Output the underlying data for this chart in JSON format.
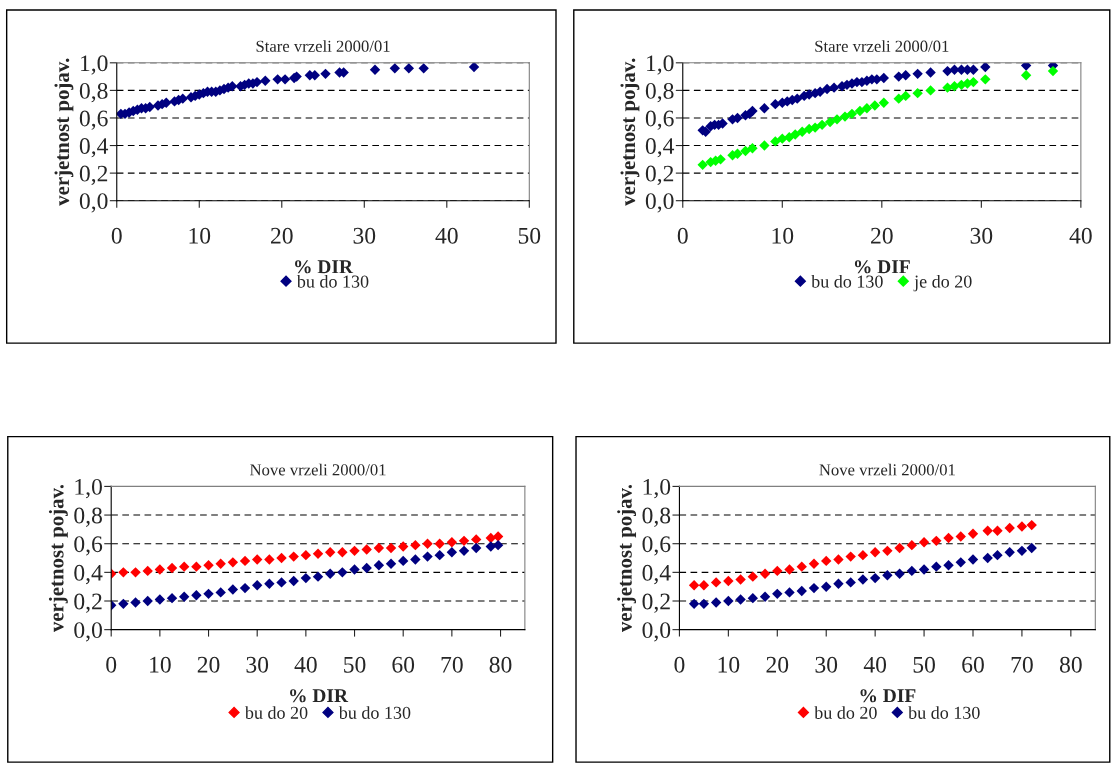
{
  "chart_data": [
    {
      "type": "scatter",
      "title": "Stare vrzeli 2000/01",
      "xlabel": "% DIR",
      "ylabel": "verjetnost pojav.",
      "xlim": [
        0,
        50
      ],
      "xticks": [
        0,
        10,
        20,
        30,
        40,
        50
      ],
      "ylim": [
        0,
        1
      ],
      "yticks": [
        {
          "value": 0,
          "label": "0,0"
        },
        {
          "value": 0.2,
          "label": "0,2"
        },
        {
          "value": 0.4,
          "label": "0,4"
        },
        {
          "value": 0.6,
          "label": "0,6"
        },
        {
          "value": 0.8,
          "label": "0,8"
        },
        {
          "value": 1,
          "label": "1,0"
        }
      ],
      "grid": "y",
      "legend": "bottom",
      "marker": "diamond",
      "series": [
        {
          "name": "bu do 130",
          "color": "#000080",
          "x": [
            0.5,
            1,
            1.5,
            2,
            2.5,
            3,
            3.5,
            4,
            5,
            5.5,
            6,
            7,
            7.5,
            8,
            9,
            9.5,
            10,
            10.5,
            11,
            11.5,
            12,
            12.5,
            13,
            13.5,
            14,
            15,
            15.5,
            16,
            16.5,
            17,
            18,
            19.5,
            20.4,
            21.5,
            21.8,
            23.4,
            24,
            25.3,
            27,
            27.5,
            31.3,
            33.7,
            35.4,
            37.2,
            43.3
          ],
          "values": [
            0.63,
            0.63,
            0.64,
            0.65,
            0.66,
            0.67,
            0.67,
            0.68,
            0.69,
            0.7,
            0.71,
            0.72,
            0.73,
            0.74,
            0.75,
            0.76,
            0.77,
            0.78,
            0.79,
            0.79,
            0.79,
            0.8,
            0.81,
            0.82,
            0.83,
            0.83,
            0.84,
            0.85,
            0.85,
            0.86,
            0.87,
            0.88,
            0.88,
            0.89,
            0.9,
            0.91,
            0.91,
            0.92,
            0.93,
            0.93,
            0.95,
            0.96,
            0.96,
            0.96,
            0.97
          ]
        }
      ]
    },
    {
      "type": "scatter",
      "title": "Stare vrzeli 2000/01",
      "xlabel": "% DIF",
      "ylabel": "verjetnost pojav.",
      "xlim": [
        0,
        40
      ],
      "xticks": [
        0,
        10,
        20,
        30,
        40
      ],
      "ylim": [
        0,
        1
      ],
      "yticks": [
        {
          "value": 0,
          "label": "0,0"
        },
        {
          "value": 0.2,
          "label": "0,2"
        },
        {
          "value": 0.4,
          "label": "0,4"
        },
        {
          "value": 0.6,
          "label": "0,6"
        },
        {
          "value": 0.8,
          "label": "0,8"
        },
        {
          "value": 1,
          "label": "1,0"
        }
      ],
      "grid": "y",
      "legend": "bottom",
      "marker": "diamond",
      "series": [
        {
          "name": "bu do 130",
          "color": "#000080",
          "x": [
            2,
            2.3,
            2.8,
            3.2,
            3.6,
            4,
            5,
            5.5,
            6.3,
            6.7,
            7,
            8.2,
            9.3,
            10,
            10.5,
            11,
            11.5,
            12.2,
            12.7,
            13.3,
            13.8,
            14.5,
            15.2,
            16,
            16.5,
            17,
            17.5,
            18,
            18.5,
            19,
            19.5,
            20.2,
            21.7,
            22.4,
            23.6,
            24.9,
            26.6,
            27.3,
            28,
            28.6,
            29.2,
            30.4,
            34.5,
            37.2
          ],
          "values": [
            0.51,
            0.5,
            0.54,
            0.55,
            0.55,
            0.56,
            0.59,
            0.6,
            0.62,
            0.63,
            0.65,
            0.67,
            0.7,
            0.71,
            0.72,
            0.73,
            0.74,
            0.76,
            0.77,
            0.78,
            0.79,
            0.81,
            0.82,
            0.83,
            0.84,
            0.85,
            0.86,
            0.86,
            0.87,
            0.88,
            0.88,
            0.89,
            0.9,
            0.91,
            0.92,
            0.93,
            0.94,
            0.95,
            0.95,
            0.95,
            0.95,
            0.97,
            0.98,
            0.98
          ]
        },
        {
          "name": "je do 20",
          "color": "#00ff00",
          "x": [
            2,
            2.8,
            3.3,
            3.8,
            5,
            5.5,
            6.3,
            7,
            8.2,
            9.3,
            10,
            10.7,
            11.3,
            12,
            12.7,
            13.3,
            14,
            14.8,
            15.5,
            16.3,
            17,
            17.8,
            18.5,
            19.3,
            20.2,
            21.7,
            22.4,
            23.6,
            24.9,
            26.6,
            27.3,
            28,
            28.6,
            29.2,
            30.4,
            34.5,
            37.2
          ],
          "values": [
            0.26,
            0.28,
            0.29,
            0.3,
            0.33,
            0.34,
            0.36,
            0.38,
            0.4,
            0.43,
            0.45,
            0.46,
            0.48,
            0.5,
            0.52,
            0.53,
            0.55,
            0.57,
            0.59,
            0.61,
            0.63,
            0.65,
            0.67,
            0.69,
            0.71,
            0.74,
            0.76,
            0.78,
            0.8,
            0.82,
            0.83,
            0.84,
            0.85,
            0.86,
            0.88,
            0.91,
            0.94
          ]
        }
      ]
    },
    {
      "type": "scatter",
      "title": "Nove vrzeli 2000/01",
      "xlabel": "% DIR",
      "ylabel": "verjetnost pojav.",
      "xlim": [
        0,
        85
      ],
      "xticks": [
        0,
        10,
        20,
        30,
        40,
        50,
        60,
        70,
        80
      ],
      "ylim": [
        0,
        1
      ],
      "yticks": [
        {
          "value": 0,
          "label": "0,0"
        },
        {
          "value": 0.2,
          "label": "0,2"
        },
        {
          "value": 0.4,
          "label": "0,4"
        },
        {
          "value": 0.6,
          "label": "0,6"
        },
        {
          "value": 0.8,
          "label": "0,8"
        },
        {
          "value": 1,
          "label": "1,0"
        }
      ],
      "grid": "y",
      "legend": "bottom",
      "marker": "diamond",
      "series": [
        {
          "name": "bu do 20",
          "color": "#ff0000",
          "x": [
            0,
            2.5,
            5,
            7.5,
            10,
            12.5,
            15,
            17.5,
            20,
            22.5,
            25,
            27.5,
            30,
            32.5,
            35,
            37.5,
            40,
            42.5,
            45,
            47.5,
            50,
            52.5,
            55,
            57.5,
            60,
            62.5,
            65,
            67.5,
            70,
            72.5,
            75,
            78,
            79.5
          ],
          "values": [
            0.39,
            0.4,
            0.4,
            0.41,
            0.42,
            0.43,
            0.44,
            0.44,
            0.45,
            0.46,
            0.47,
            0.48,
            0.49,
            0.49,
            0.5,
            0.51,
            0.52,
            0.53,
            0.54,
            0.54,
            0.55,
            0.56,
            0.57,
            0.57,
            0.58,
            0.59,
            0.6,
            0.6,
            0.61,
            0.62,
            0.63,
            0.64,
            0.65
          ]
        },
        {
          "name": "bu do 130",
          "color": "#000080",
          "x": [
            0,
            2.5,
            5,
            7.5,
            10,
            12.5,
            15,
            17.5,
            20,
            22.5,
            25,
            27.5,
            30,
            32.5,
            35,
            37.5,
            40,
            42.5,
            45,
            47.5,
            50,
            52.5,
            55,
            57.5,
            60,
            62.5,
            65,
            67.5,
            70,
            72.5,
            75,
            78,
            79.5
          ],
          "values": [
            0.17,
            0.18,
            0.19,
            0.2,
            0.21,
            0.22,
            0.23,
            0.24,
            0.25,
            0.26,
            0.28,
            0.29,
            0.31,
            0.32,
            0.33,
            0.34,
            0.36,
            0.37,
            0.39,
            0.4,
            0.42,
            0.43,
            0.45,
            0.46,
            0.48,
            0.49,
            0.51,
            0.52,
            0.54,
            0.55,
            0.57,
            0.58,
            0.59
          ]
        }
      ]
    },
    {
      "type": "scatter",
      "title": "Nove vrzeli 2000/01",
      "xlabel": "% DIF",
      "ylabel": "verjetnost pojav.",
      "xlim": [
        0,
        85
      ],
      "xticks": [
        0,
        10,
        20,
        30,
        40,
        50,
        60,
        70,
        80
      ],
      "ylim": [
        0,
        1
      ],
      "yticks": [
        {
          "value": 0,
          "label": "0,0"
        },
        {
          "value": 0.2,
          "label": "0,2"
        },
        {
          "value": 0.4,
          "label": "0,4"
        },
        {
          "value": 0.6,
          "label": "0,6"
        },
        {
          "value": 0.8,
          "label": "0,8"
        },
        {
          "value": 1,
          "label": "1,0"
        }
      ],
      "grid": "y",
      "legend": "bottom",
      "marker": "diamond",
      "series": [
        {
          "name": "bu do 20",
          "color": "#ff0000",
          "x": [
            3,
            5,
            7.5,
            10,
            12.5,
            15,
            17.5,
            20,
            22.5,
            25,
            27.5,
            30,
            32.5,
            35,
            37.5,
            40,
            42.5,
            45,
            47.5,
            50,
            52.5,
            55,
            57.5,
            60,
            63,
            65,
            67.5,
            70,
            72
          ],
          "values": [
            0.31,
            0.31,
            0.33,
            0.34,
            0.35,
            0.37,
            0.39,
            0.41,
            0.42,
            0.44,
            0.46,
            0.48,
            0.49,
            0.51,
            0.52,
            0.54,
            0.55,
            0.57,
            0.59,
            0.61,
            0.62,
            0.64,
            0.65,
            0.67,
            0.69,
            0.69,
            0.71,
            0.72,
            0.73
          ]
        },
        {
          "name": "bu do 130",
          "color": "#000080",
          "x": [
            3,
            5,
            7.5,
            10,
            12.5,
            15,
            17.5,
            20,
            22.5,
            25,
            27.5,
            30,
            32.5,
            35,
            37.5,
            40,
            42.5,
            45,
            47.5,
            50,
            52.5,
            55,
            57.5,
            60,
            63,
            65,
            67.5,
            70,
            72
          ],
          "values": [
            0.18,
            0.18,
            0.19,
            0.2,
            0.21,
            0.22,
            0.23,
            0.25,
            0.26,
            0.27,
            0.29,
            0.3,
            0.32,
            0.33,
            0.35,
            0.36,
            0.38,
            0.39,
            0.41,
            0.42,
            0.44,
            0.45,
            0.47,
            0.49,
            0.5,
            0.52,
            0.54,
            0.55,
            0.57
          ]
        }
      ]
    }
  ]
}
